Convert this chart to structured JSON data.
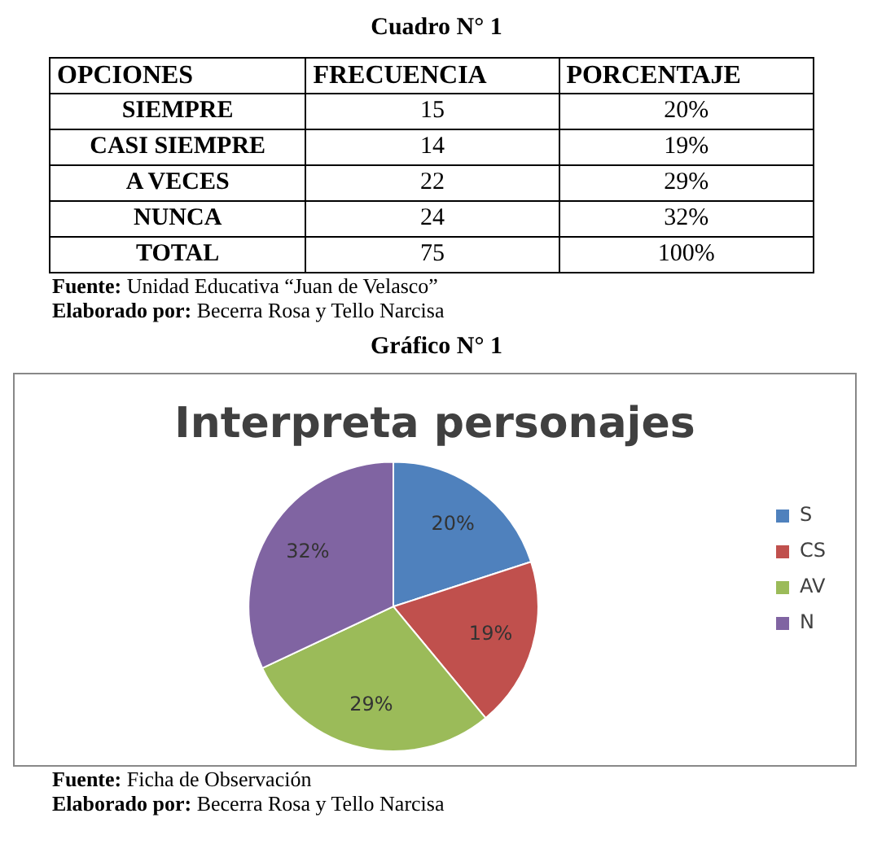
{
  "chart_data": {
    "type": "pie",
    "title": "Interpreta personajes",
    "categories": [
      "S",
      "CS",
      "AV",
      "N"
    ],
    "values": [
      20,
      19,
      29,
      32
    ],
    "colors": [
      "#4f81bd",
      "#c0504d",
      "#9bbb59",
      "#8064a2"
    ],
    "value_labels": [
      "20%",
      "19%",
      "29%",
      "32%"
    ],
    "legend": "right",
    "annotations": [
      "Cuadro N° 1",
      "OPCIONES",
      "FRECUENCIA",
      "PORCENTAJE",
      "SIEMPRE",
      "15",
      "20%",
      "CASI SIEMPRE",
      "14",
      "19%",
      "A VECES",
      "22",
      "29%",
      "NUNCA",
      "24",
      "32%",
      "TOTAL",
      "75",
      "100%",
      "Fuente: Unidad Educativa “Juan de Velasco”",
      "Elaborado por: Becerra Rosa y Tello Narcisa",
      "Gráfico N° 1",
      "Fuente: Ficha de Observación",
      "Elaborado por: Becerra Rosa y Tello Narcisa"
    ]
  }
}
